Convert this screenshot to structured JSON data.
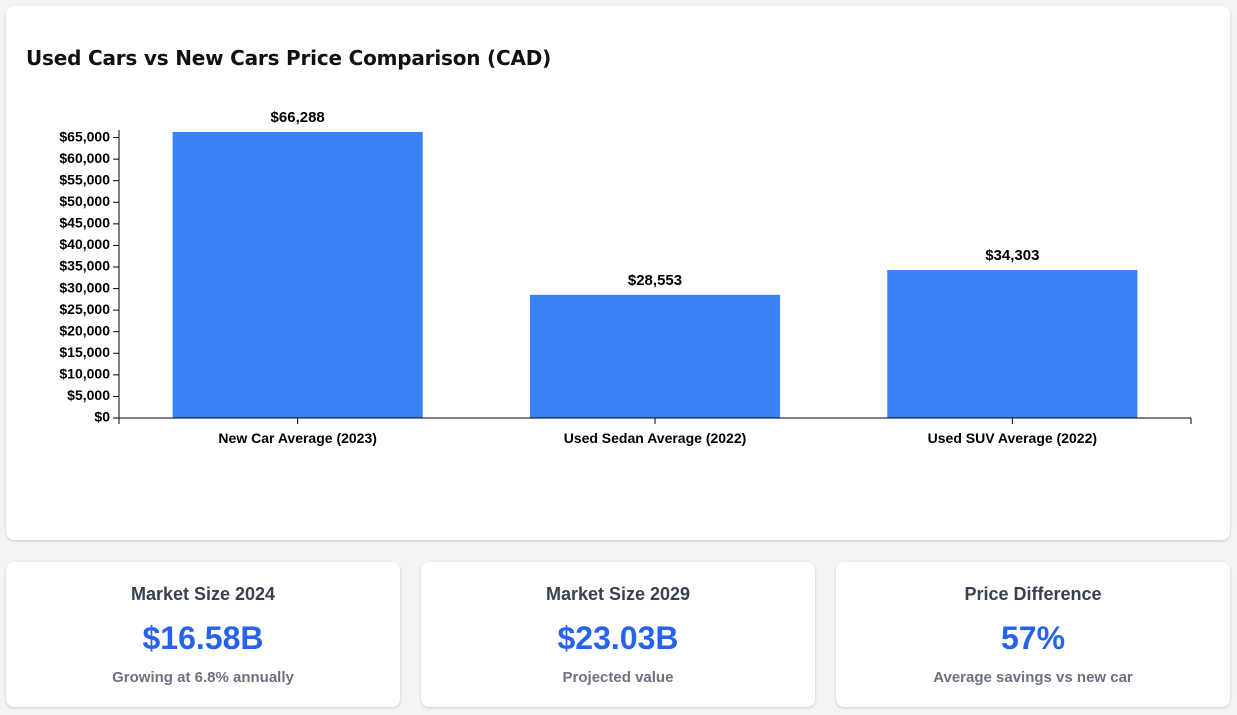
{
  "chart_card": {
    "title": "Used Cars vs New Cars Price Comparison (CAD)"
  },
  "chart_data": {
    "type": "bar",
    "title": "Used Cars vs New Cars Price Comparison (CAD)",
    "categories": [
      "New Car Average (2023)",
      "Used Sedan Average (2022)",
      "Used SUV Average (2022)"
    ],
    "values": [
      66288,
      28553,
      34303
    ],
    "value_labels": [
      "$66,288",
      "$28,553",
      "$34,303"
    ],
    "ylim": [
      0,
      66288
    ],
    "yticks": [
      0,
      5000,
      10000,
      15000,
      20000,
      25000,
      30000,
      35000,
      40000,
      45000,
      50000,
      55000,
      60000,
      65000
    ],
    "ytick_labels": [
      "$0",
      "$5,000",
      "$10,000",
      "$15,000",
      "$20,000",
      "$25,000",
      "$30,000",
      "$35,000",
      "$40,000",
      "$45,000",
      "$50,000",
      "$55,000",
      "$60,000",
      "$65,000"
    ],
    "xlabel": "",
    "ylabel": "",
    "bar_color": "#3b82f6",
    "grid": false,
    "legend": "none"
  },
  "stats": [
    {
      "label": "Market Size 2024",
      "value": "$16.58B",
      "description": "Growing at 6.8% annually"
    },
    {
      "label": "Market Size 2029",
      "value": "$23.03B",
      "description": "Projected value"
    },
    {
      "label": "Price Difference",
      "value": "57%",
      "description": "Average savings vs new car"
    }
  ],
  "colors": {
    "accent": "#2563eb",
    "bar": "#3b82f6",
    "label": "#374151",
    "muted": "#6b7280"
  }
}
